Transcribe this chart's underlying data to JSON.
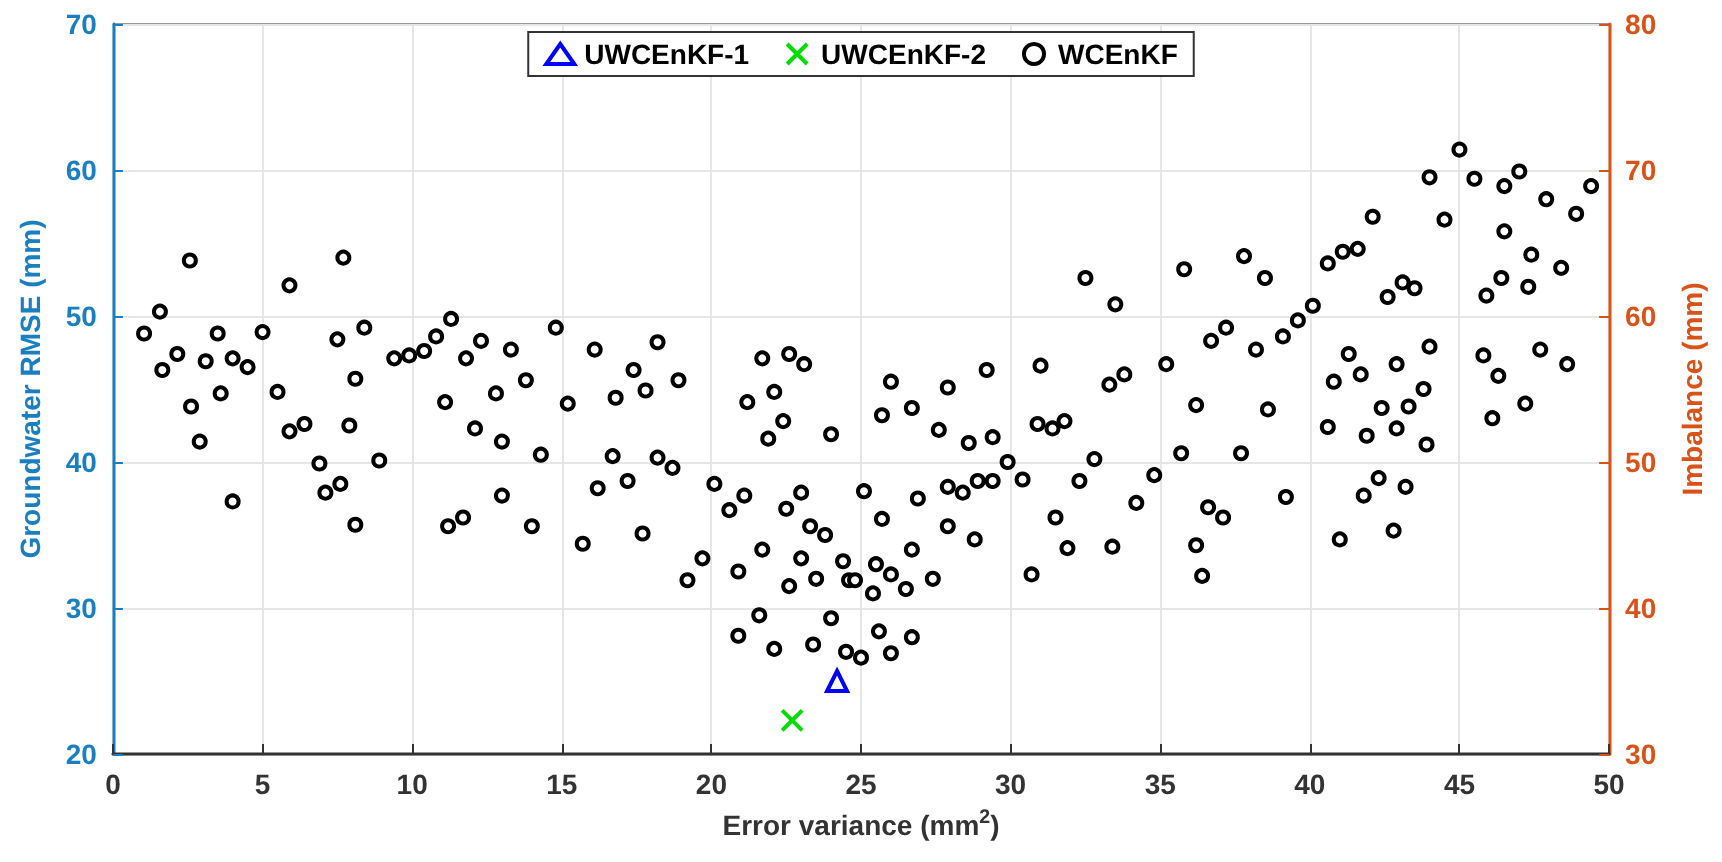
{
  "chart_data": {
    "type": "scatter",
    "xlabel": "Error variance (mm$^{2}$)",
    "ylabel": "Groundwater RMSE (mm)",
    "y2label": "Imbalance (mm)",
    "xlim": [
      0,
      50
    ],
    "xticks": [
      0,
      5,
      10,
      15,
      20,
      25,
      30,
      35,
      40,
      45,
      50
    ],
    "ylim": [
      20,
      70
    ],
    "yticks": [
      20,
      30,
      40,
      50,
      60,
      70
    ],
    "y2lim": [
      30,
      80
    ],
    "y2ticks": [
      30,
      40,
      50,
      60,
      70,
      80
    ],
    "grid": true,
    "legend": "top",
    "series": [
      {
        "name": "UWCEnKF-1",
        "color": "#0000ff",
        "marker": "triangle",
        "x": [
          24.2
        ],
        "values": [
          25.0
        ]
      },
      {
        "name": "UWCEnKF-2",
        "color": "#00dd00",
        "marker": "cross",
        "x": [
          22.7
        ],
        "values": [
          22.3
        ]
      },
      {
        "name": "WCEnKF",
        "color": "#000000",
        "marker": "circle",
        "x": [
          1.04,
          1.57,
          1.65,
          2.15,
          2.57,
          2.61,
          2.9,
          3.1,
          3.5,
          3.6,
          4.0,
          4.0,
          4.5,
          5.0,
          5.5,
          5.9,
          5.9,
          6.4,
          6.9,
          7.1,
          7.5,
          7.6,
          7.7,
          7.9,
          8.1,
          8.1,
          8.4,
          8.9,
          9.4,
          9.9,
          10.4,
          10.8,
          11.3,
          11.1,
          11.2,
          11.7,
          11.8,
          12.1,
          12.3,
          13.3,
          14.8,
          16.1,
          18.2,
          17.4,
          12.8,
          13.8,
          15.2,
          16.8,
          17.8,
          18.9,
          13.0,
          14.3,
          16.7,
          18.2,
          18.7,
          17.2,
          16.2,
          13.0,
          14.0,
          15.7,
          17.7,
          19.7,
          19.2,
          20.1,
          20.6,
          21.1,
          20.9,
          21.7,
          21.6,
          20.9,
          22.1,
          23.4,
          24.5,
          24.0,
          22.6,
          23.5,
          23.0,
          24.4,
          24.6,
          22.5,
          23.3,
          23.8,
          23.0,
          21.2,
          21.9,
          22.4,
          22.1,
          21.7,
          22.6,
          23.1,
          24.0,
          25.0,
          26.0,
          25.6,
          26.7,
          24.8,
          25.4,
          25.5,
          26.0,
          26.5,
          27.4,
          26.7,
          25.7,
          25.1,
          26.9,
          27.9,
          27.9,
          28.4,
          28.8,
          28.9,
          29.4,
          29.9,
          30.4,
          28.6,
          29.4,
          27.6,
          26.7,
          25.7,
          26.0,
          27.9,
          29.2,
          31.0,
          30.9,
          31.4,
          31.8,
          30.7,
          31.5,
          31.9,
          32.3,
          32.8,
          33.4,
          33.3,
          33.8,
          32.5,
          33.5,
          34.2,
          34.8,
          35.2,
          35.7,
          35.8,
          36.2,
          36.2,
          36.4,
          36.6,
          37.1,
          36.7,
          37.2,
          37.7,
          37.8,
          38.5,
          38.2,
          39.1,
          39.6,
          40.1,
          38.6,
          39.2,
          40.6,
          41.1,
          41.6,
          42.1,
          42.6,
          43.1,
          43.5,
          44.0,
          44.5,
          45.0,
          45.5,
          46.5,
          47.0,
          47.9,
          49.4,
          48.9,
          46.5,
          47.4,
          48.4,
          47.3,
          46.4,
          45.9,
          40.8,
          41.3,
          41.7,
          42.9,
          44.0,
          43.8,
          42.4,
          43.3,
          40.6,
          41.9,
          42.9,
          43.9,
          42.3,
          41.8,
          43.2,
          41.0,
          42.8,
          45.8,
          46.3,
          47.7,
          48.6,
          46.1,
          47.2
        ],
        "values": [
          48.8,
          50.3,
          46.3,
          47.4,
          53.8,
          43.8,
          41.4,
          46.9,
          48.8,
          44.7,
          47.1,
          37.3,
          46.5,
          48.9,
          44.8,
          52.1,
          42.1,
          42.6,
          39.9,
          37.9,
          48.4,
          38.5,
          54.0,
          42.5,
          45.7,
          35.7,
          49.2,
          40.1,
          47.1,
          47.3,
          47.6,
          48.6,
          49.8,
          44.1,
          35.6,
          36.2,
          47.1,
          42.3,
          48.3,
          47.7,
          49.2,
          47.7,
          48.2,
          46.3,
          44.7,
          45.6,
          44.0,
          44.4,
          44.9,
          45.6,
          41.4,
          40.5,
          40.4,
          40.3,
          39.6,
          38.7,
          38.2,
          37.7,
          35.6,
          34.4,
          35.1,
          33.4,
          31.9,
          38.5,
          36.7,
          37.7,
          32.5,
          34.0,
          29.5,
          28.1,
          27.2,
          27.5,
          27.0,
          29.3,
          31.5,
          32.0,
          33.4,
          33.2,
          31.9,
          36.8,
          35.6,
          35.0,
          37.9,
          44.1,
          41.6,
          42.8,
          44.8,
          47.1,
          47.4,
          46.7,
          41.9,
          26.6,
          26.9,
          28.4,
          28.0,
          31.9,
          31.0,
          33.0,
          32.3,
          31.3,
          32.0,
          34.0,
          36.1,
          38.0,
          37.5,
          35.6,
          38.3,
          37.9,
          34.7,
          38.7,
          38.7,
          40.0,
          38.8,
          41.3,
          41.7,
          42.2,
          43.7,
          43.2,
          45.5,
          45.1,
          46.3,
          46.6,
          42.6,
          42.3,
          42.8,
          32.3,
          36.2,
          34.1,
          38.7,
          40.2,
          34.2,
          45.3,
          46.0,
          52.6,
          50.8,
          37.2,
          39.1,
          46.7,
          40.6,
          53.2,
          43.9,
          34.3,
          32.2,
          36.9,
          36.2,
          48.3,
          49.2,
          40.6,
          54.1,
          52.6,
          47.7,
          48.6,
          49.7,
          50.7,
          43.6,
          37.6,
          53.6,
          54.4,
          54.6,
          56.8,
          51.3,
          52.3,
          51.9,
          59.5,
          56.6,
          61.4,
          59.4,
          58.9,
          59.9,
          58.0,
          58.9,
          57.0,
          55.8,
          54.2,
          53.3,
          52.0,
          52.6,
          51.4,
          45.5,
          47.4,
          46.0,
          46.7,
          47.9,
          45.0,
          43.7,
          43.8,
          42.4,
          41.8,
          42.3,
          41.2,
          38.9,
          37.7,
          38.3,
          34.7,
          35.3,
          47.3,
          45.9,
          47.7,
          46.7,
          43.0,
          44.0
        ]
      }
    ]
  }
}
